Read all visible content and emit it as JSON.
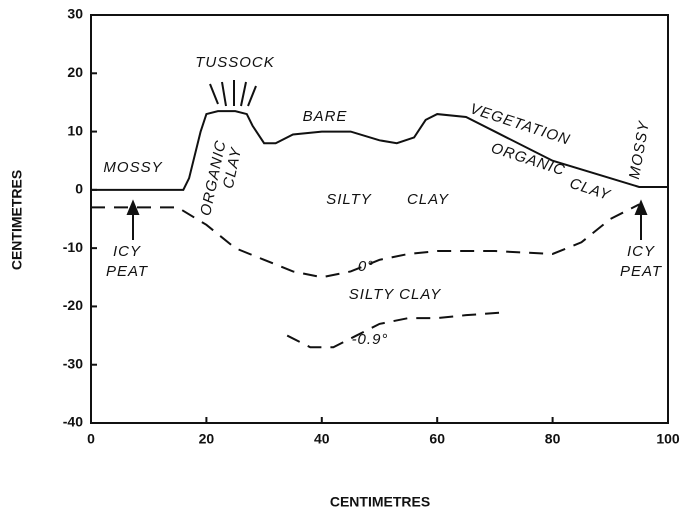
{
  "chart_data": {
    "type": "line",
    "xlabel": "CENTIMETRES",
    "ylabel": "CENTIMETRES",
    "xlim": [
      0,
      100
    ],
    "xticks": [
      0,
      20,
      40,
      60,
      80,
      100
    ],
    "ylim": [
      -40,
      30
    ],
    "yticks": [
      -40,
      -30,
      -20,
      -10,
      0,
      10,
      20,
      30
    ],
    "grid": false,
    "series": [
      {
        "color": "#111",
        "style": "solid",
        "x": [
          0,
          16,
          17,
          19,
          20,
          22,
          25,
          27,
          28,
          30,
          32,
          35,
          40,
          45,
          50,
          53,
          56,
          58,
          60,
          65,
          70,
          80,
          90,
          95,
          100
        ],
        "values": [
          0,
          0,
          2,
          10,
          13,
          13.5,
          13.5,
          13,
          11,
          8,
          8,
          9.5,
          10,
          10,
          8.5,
          8,
          9,
          12,
          13,
          12.5,
          10,
          5,
          2,
          0.5,
          0.5
        ]
      },
      {
        "color": "#111",
        "style": "dashed",
        "x": [
          0,
          10,
          15,
          20,
          25,
          30,
          35,
          40,
          45,
          50,
          55,
          60,
          70,
          80,
          85,
          90,
          95
        ],
        "values": [
          -3,
          -3,
          -3,
          -6,
          -10,
          -12,
          -14,
          -15,
          -14,
          -12,
          -11,
          -10.5,
          -10.5,
          -11,
          -9,
          -5,
          -2.5
        ]
      },
      {
        "color": "#111",
        "style": "dashed",
        "x": [
          34,
          38,
          42,
          46,
          50,
          55,
          60,
          65,
          72
        ],
        "values": [
          -25,
          -27,
          -27,
          -25,
          -23,
          -22,
          -22,
          -21.5,
          -21
        ]
      }
    ],
    "annotations": [
      "TUSSOCK",
      "MOSSY",
      "ORGANIC",
      "CLAY",
      "BARE",
      "VEGETATION",
      "ORGANIC",
      "CLAY",
      "SILTY",
      "CLAY",
      "ICY",
      "PEAT",
      "0°",
      "SILTY CLAY",
      "-0.9°",
      "MOSSY",
      "ICY",
      "PEAT"
    ]
  }
}
